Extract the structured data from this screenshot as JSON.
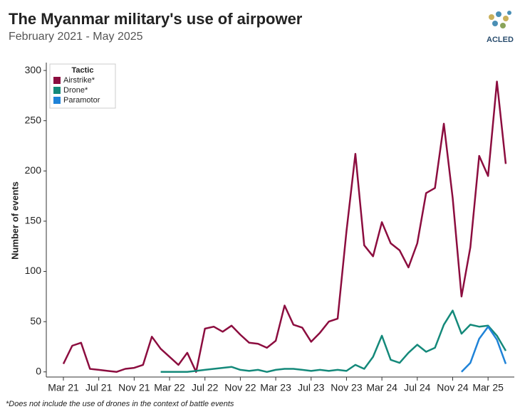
{
  "header": {
    "logo": "ACLED"
  },
  "chart_data": {
    "type": "line",
    "title": "The Myanmar military's use of airpower",
    "subtitle": "February 2021 - May 2025",
    "ylabel": "Number of events",
    "footnote": "*Does not include the use of drones in the context of battle events",
    "legend_title": "Tactic",
    "legend_position": "upper left",
    "categories": [
      "Mar 21",
      null,
      null,
      null,
      "Jul 21",
      null,
      null,
      null,
      "Nov 21",
      null,
      null,
      null,
      "Mar 22",
      null,
      null,
      null,
      "Jul 22",
      null,
      null,
      null,
      "Nov 22",
      null,
      null,
      null,
      "Mar 23",
      null,
      null,
      null,
      "Jul 23",
      null,
      null,
      null,
      "Nov 23",
      null,
      null,
      null,
      "Mar 24",
      null,
      null,
      null,
      "Jul 24",
      null,
      null,
      null,
      "Nov 24",
      null,
      null,
      null,
      "Mar 25",
      null,
      null
    ],
    "series": [
      {
        "name": "Airstrike*",
        "color": "#8c0d3f",
        "values": [
          8,
          26,
          29,
          3,
          2,
          1,
          0,
          3,
          4,
          7,
          35,
          23,
          15,
          7,
          19,
          0,
          43,
          45,
          40,
          46,
          37,
          29,
          28,
          24,
          31,
          66,
          47,
          44,
          30,
          39,
          50,
          53,
          140,
          217,
          126,
          115,
          149,
          128,
          121,
          104,
          128,
          178,
          183,
          247,
          173,
          75,
          124,
          215,
          195,
          289,
          207
        ]
      },
      {
        "name": "Drone*",
        "color": "#14897a",
        "values": [
          null,
          null,
          null,
          null,
          null,
          null,
          null,
          null,
          null,
          null,
          null,
          0,
          0,
          0,
          0,
          1,
          2,
          3,
          4,
          5,
          2,
          1,
          2,
          0,
          2,
          3,
          3,
          2,
          1,
          2,
          1,
          2,
          1,
          7,
          3,
          15,
          36,
          12,
          9,
          19,
          27,
          20,
          24,
          47,
          61,
          38,
          47,
          45,
          46,
          36,
          21
        ]
      },
      {
        "name": "Paramotor",
        "color": "#1f83d8",
        "values": [
          null,
          null,
          null,
          null,
          null,
          null,
          null,
          null,
          null,
          null,
          null,
          null,
          null,
          null,
          null,
          null,
          null,
          null,
          null,
          null,
          null,
          null,
          null,
          null,
          null,
          null,
          null,
          null,
          null,
          null,
          null,
          null,
          null,
          null,
          null,
          null,
          null,
          null,
          null,
          null,
          null,
          null,
          null,
          null,
          null,
          0,
          9,
          33,
          45,
          32,
          8
        ]
      }
    ],
    "ylim": [
      -3,
      305
    ],
    "yticks": [
      0,
      50,
      100,
      150,
      200,
      250,
      300
    ],
    "grid": false
  }
}
